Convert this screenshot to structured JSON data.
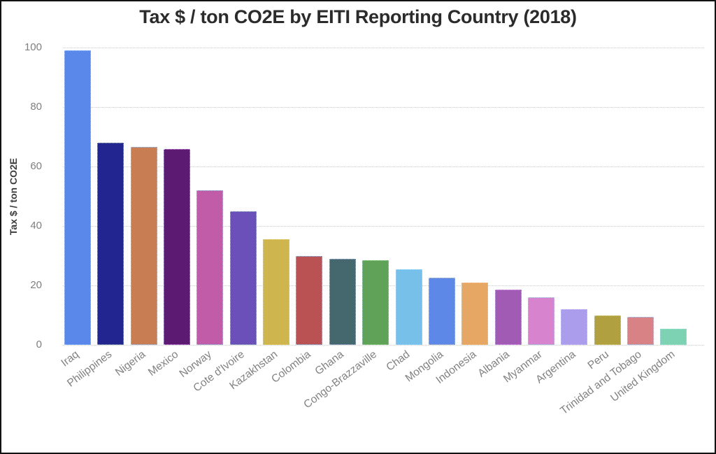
{
  "window": {
    "background": "#ffffff",
    "border_color": "#121212"
  },
  "chart_data": {
    "type": "bar",
    "title": "Tax $ / ton CO2E by EITI Reporting Country (2018)",
    "xlabel": "",
    "ylabel": "Tax $ / ton CO2E",
    "ylim": [
      0,
      100
    ],
    "yticks": [
      0,
      20,
      40,
      60,
      80,
      100
    ],
    "grid": "horizontal-dotted",
    "legend": "none",
    "categories": [
      "Iraq",
      "Philippines",
      "Nigeria",
      "Mexico",
      "Norway",
      "Cote d'Ivoire",
      "Kazakhstan",
      "Colombia",
      "Ghana",
      "Congo-Brazzaville",
      "Chad",
      "Mongolia",
      "Indonesia",
      "Albania",
      "Myanmar",
      "Argentina",
      "Peru",
      "Trinidad and Tobago",
      "United Kingdom"
    ],
    "values": [
      99,
      68,
      66.5,
      66,
      52,
      45,
      35.5,
      30,
      29,
      28.5,
      25.5,
      22.5,
      21,
      18.5,
      16,
      12,
      10,
      9.5,
      5.5
    ],
    "bar_colors": [
      "#5A87EA",
      "#22248F",
      "#C97D52",
      "#5C1A72",
      "#C05CA8",
      "#6A50B8",
      "#CFB54E",
      "#BA5254",
      "#45686E",
      "#60A257",
      "#76C0EA",
      "#5E88E8",
      "#E6A765",
      "#A25BB5",
      "#D883CE",
      "#AC9CEC",
      "#B1A03F",
      "#D98285",
      "#7DD2B3"
    ]
  }
}
